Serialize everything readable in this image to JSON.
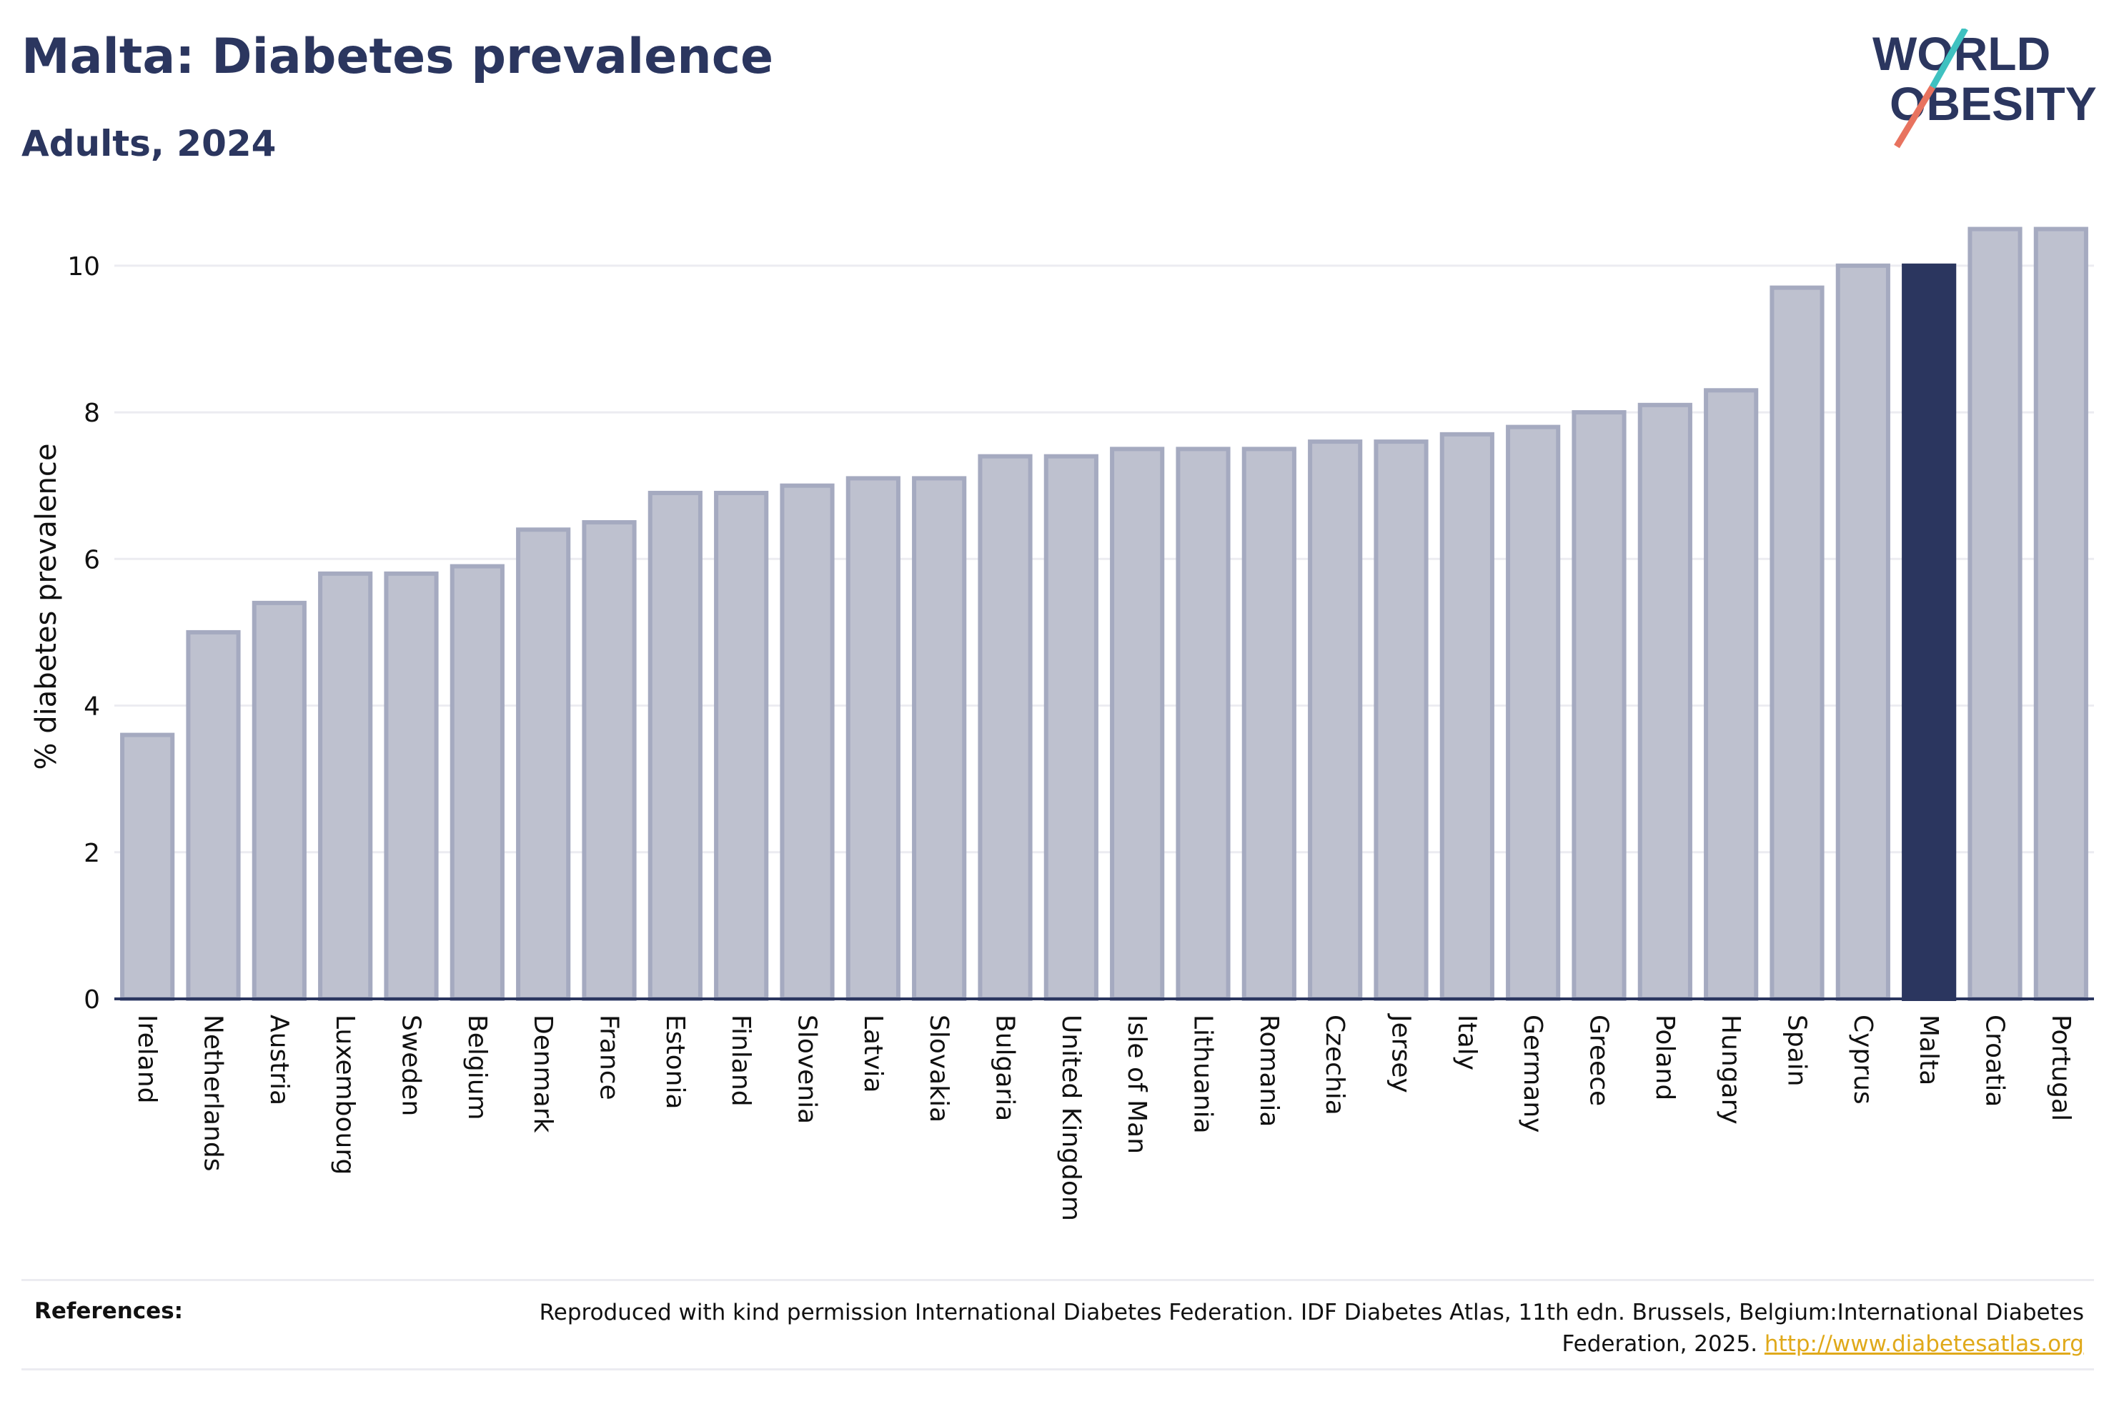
{
  "header": {
    "title": "Malta: Diabetes prevalence",
    "subtitle": "Adults, 2024"
  },
  "logo": {
    "line1": "WORLD",
    "line2": "OBESITY"
  },
  "chart_data": {
    "type": "bar",
    "ylabel": "% diabetes prevalence",
    "xlabel": "",
    "ylim": [
      0,
      10.7
    ],
    "yticks": [
      0,
      2,
      4,
      6,
      8,
      10
    ],
    "grid": true,
    "highlight": "Malta",
    "colors": {
      "bar": "#bec1cf",
      "bar_border": "#a5aac0",
      "highlight": "#2b365f",
      "grid": "#ececf1",
      "axis": "#2b365f"
    },
    "categories": [
      "Ireland",
      "Netherlands",
      "Austria",
      "Luxembourg",
      "Sweden",
      "Belgium",
      "Denmark",
      "France",
      "Estonia",
      "Finland",
      "Slovenia",
      "Latvia",
      "Slovakia",
      "Bulgaria",
      "United Kingdom",
      "Isle of Man",
      "Lithuania",
      "Romania",
      "Czechia",
      "Jersey",
      "Italy",
      "Germany",
      "Greece",
      "Poland",
      "Hungary",
      "Spain",
      "Cyprus",
      "Malta",
      "Croatia",
      "Portugal"
    ],
    "values": [
      3.6,
      5.0,
      5.4,
      5.8,
      5.8,
      5.9,
      6.4,
      6.5,
      6.9,
      6.9,
      7.0,
      7.1,
      7.1,
      7.4,
      7.4,
      7.5,
      7.5,
      7.5,
      7.6,
      7.6,
      7.7,
      7.8,
      8.0,
      8.1,
      8.3,
      9.7,
      10.0,
      10.0,
      10.5,
      10.5
    ]
  },
  "references": {
    "label": "References:",
    "text": "Reproduced with kind permission International Diabetes Federation. IDF Diabetes Atlas, 11th edn. Brussels, Belgium:International Diabetes Federation, 2025.",
    "link": "http://www.diabetesatlas.org"
  }
}
